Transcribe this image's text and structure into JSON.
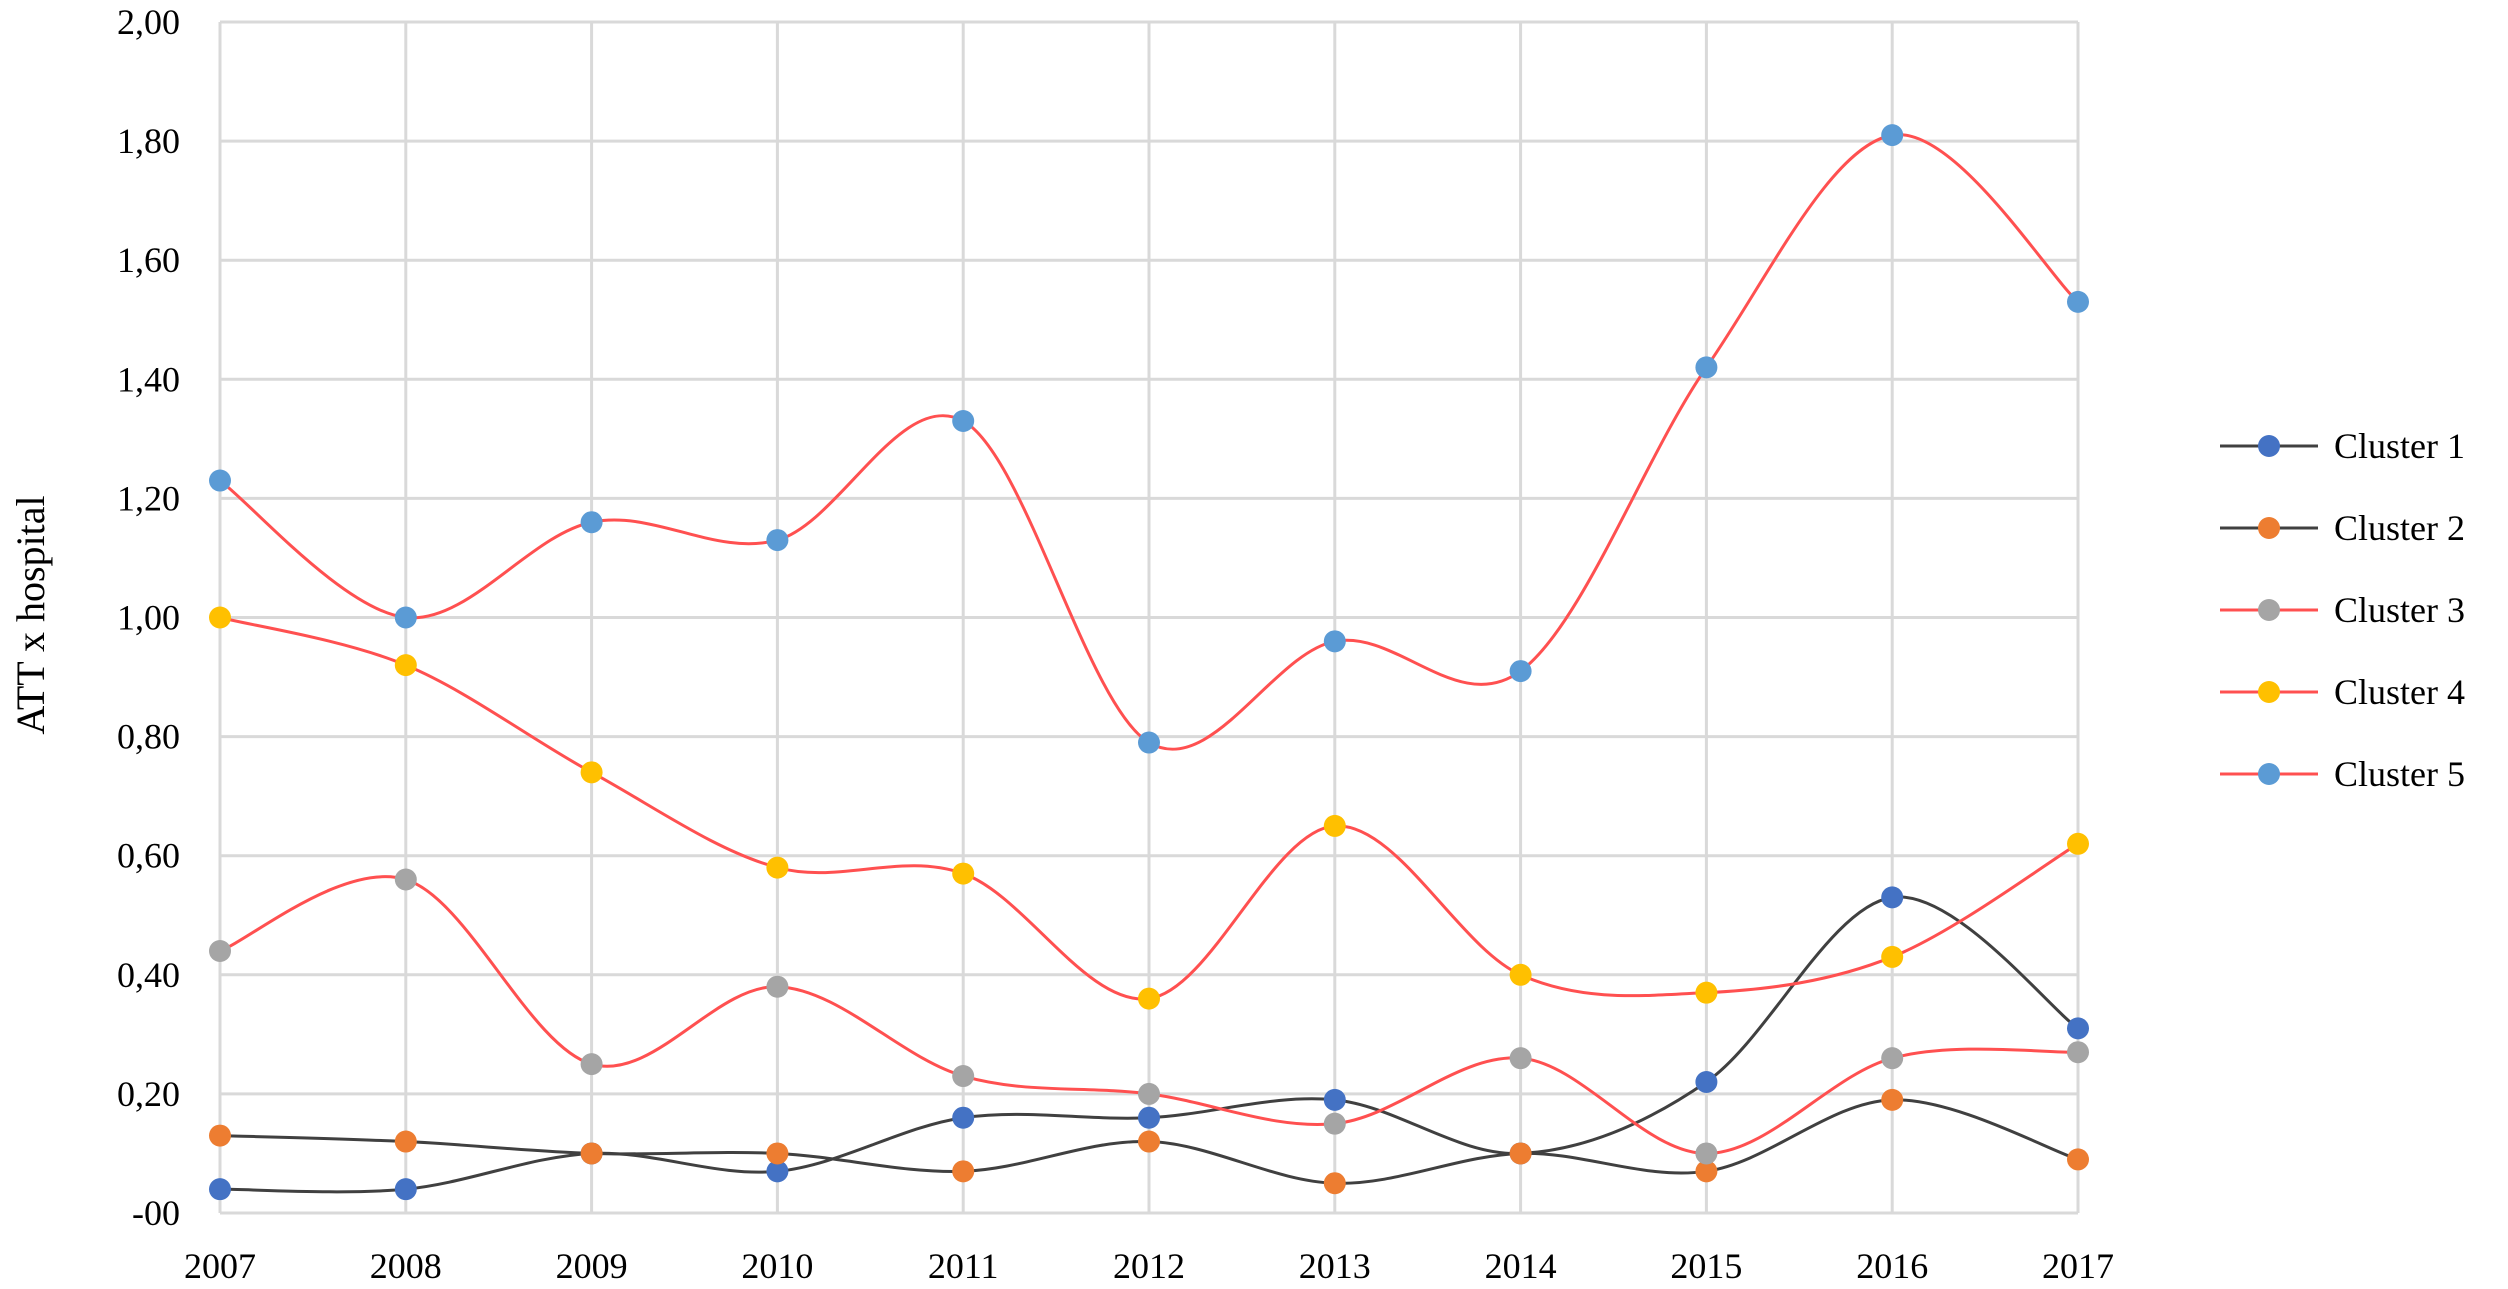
{
  "chart_data": {
    "type": "line",
    "title": "",
    "xlabel": "",
    "ylabel": "ATT x hospital",
    "ylim": [
      0,
      2
    ],
    "y_ticks": [
      "-00",
      "0,20",
      "0,40",
      "0,60",
      "0,80",
      "1,00",
      "1,20",
      "1,40",
      "1,60",
      "1,80",
      "2,00"
    ],
    "grid": true,
    "smooth": true,
    "legend_position": "right",
    "categories": [
      "2007",
      "2008",
      "2009",
      "2010",
      "2011",
      "2012",
      "2013",
      "2014",
      "2015",
      "2016",
      "2017"
    ],
    "series": [
      {
        "name": "Cluster 1",
        "marker_color": "#4472C4",
        "line_color": "#404040",
        "values": [
          0.04,
          0.04,
          0.1,
          0.07,
          0.16,
          0.16,
          0.19,
          0.1,
          0.22,
          0.53,
          0.31
        ]
      },
      {
        "name": "Cluster 2",
        "marker_color": "#ED7D31",
        "line_color": "#404040",
        "values": [
          0.13,
          0.12,
          0.1,
          0.1,
          0.07,
          0.12,
          0.05,
          0.1,
          0.07,
          0.19,
          0.09
        ]
      },
      {
        "name": "Cluster 3",
        "marker_color": "#A5A5A5",
        "line_color": "#FF5050",
        "values": [
          0.44,
          0.56,
          0.25,
          0.38,
          0.23,
          0.2,
          0.15,
          0.26,
          0.1,
          0.26,
          0.27
        ]
      },
      {
        "name": "Cluster 4",
        "marker_color": "#FFC000",
        "line_color": "#FF5050",
        "values": [
          1.0,
          0.92,
          0.74,
          0.58,
          0.57,
          0.36,
          0.65,
          0.4,
          0.37,
          0.43,
          0.62
        ]
      },
      {
        "name": "Cluster 5",
        "marker_color": "#5B9BD5",
        "line_color": "#FF5050",
        "values": [
          1.23,
          1.0,
          1.16,
          1.13,
          1.33,
          0.79,
          0.96,
          0.91,
          1.42,
          1.81,
          1.53
        ]
      }
    ]
  }
}
